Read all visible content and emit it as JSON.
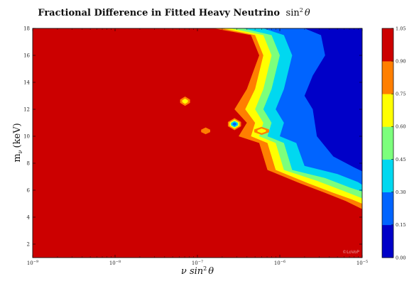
{
  "chart_data": {
    "type": "contour",
    "title": "Fractional Difference in Fitted Heavy Neutrino",
    "title_math": "sin",
    "title_math_sup": "2",
    "title_math_var": "θ",
    "xlabel_prefix": "ν sin",
    "xlabel_sup": "2",
    "xlabel_var": "θ",
    "ylabel": "m",
    "ylabel_sub": "ν",
    "ylabel_unit": "(keV)",
    "x_scale": "log",
    "xlim": [
      1e-09,
      1e-05
    ],
    "ylim": [
      1,
      18
    ],
    "x_ticks": [
      {
        "value": 1e-09,
        "label": "10",
        "exp": "−9"
      },
      {
        "value": 1e-08,
        "label": "10",
        "exp": "−8"
      },
      {
        "value": 1e-07,
        "label": "10",
        "exp": "−7"
      },
      {
        "value": 1e-06,
        "label": "10",
        "exp": "−6"
      },
      {
        "value": 1e-05,
        "label": "10",
        "exp": "−5"
      }
    ],
    "y_ticks": [
      "2",
      "4",
      "6",
      "8",
      "10",
      "12",
      "14",
      "16",
      "18"
    ],
    "y_tick_values": [
      2,
      4,
      6,
      8,
      10,
      12,
      14,
      16,
      18
    ],
    "levels": [
      0.0,
      0.15,
      0.3,
      0.45,
      0.6,
      0.75,
      0.9,
      1.05
    ],
    "colorbar_labels": [
      "0.00",
      "0.15",
      "0.30",
      "0.45",
      "0.60",
      "0.75",
      "0.90",
      "1.05"
    ],
    "level_colors": [
      "#0000c8",
      "#0064ff",
      "#00d8f0",
      "#7cff7c",
      "#ffff00",
      "#ff7f00",
      "#cc0000"
    ],
    "boundaries": [
      {
        "above": 0.9,
        "points": [
          [
            -6.8,
            18
          ],
          [
            -6.35,
            17.5
          ],
          [
            -6.25,
            16
          ],
          [
            -6.4,
            13.5
          ],
          [
            -6.55,
            12
          ],
          [
            -6.4,
            11
          ],
          [
            -6.5,
            10
          ],
          [
            -6.25,
            9.5
          ],
          [
            -6.15,
            7.5
          ],
          [
            -5.75,
            6.5
          ],
          [
            -5.45,
            5.8
          ],
          [
            -5.2,
            5.2
          ],
          [
            -5,
            4.6
          ],
          [
            -5,
            1
          ]
        ]
      },
      {
        "above": 0.75,
        "points": [
          [
            -6.7,
            18
          ],
          [
            -6.3,
            17.5
          ],
          [
            -6.2,
            16
          ],
          [
            -6.3,
            13.5
          ],
          [
            -6.42,
            12
          ],
          [
            -6.3,
            11
          ],
          [
            -6.35,
            10
          ],
          [
            -6.15,
            9.5
          ],
          [
            -6.05,
            7.5
          ],
          [
            -5.65,
            6.5
          ],
          [
            -5.35,
            5.8
          ],
          [
            -5.12,
            5.3
          ],
          [
            -5,
            5
          ],
          [
            -5,
            1
          ]
        ]
      },
      {
        "above": 0.6,
        "points": [
          [
            -6.6,
            18
          ],
          [
            -6.2,
            17.5
          ],
          [
            -6.1,
            16
          ],
          [
            -6.2,
            13.5
          ],
          [
            -6.3,
            12
          ],
          [
            -6.2,
            11
          ],
          [
            -6.25,
            10
          ],
          [
            -6.05,
            9.5
          ],
          [
            -5.95,
            7.5
          ],
          [
            -5.55,
            6.7
          ],
          [
            -5.25,
            6
          ],
          [
            -5,
            5.4
          ],
          [
            -5,
            1
          ]
        ]
      },
      {
        "above": 0.45,
        "points": [
          [
            -6.45,
            18
          ],
          [
            -6.1,
            17.5
          ],
          [
            -6,
            16
          ],
          [
            -6.1,
            13.5
          ],
          [
            -6.2,
            12
          ],
          [
            -6.1,
            11
          ],
          [
            -6.15,
            10
          ],
          [
            -5.95,
            9.5
          ],
          [
            -5.85,
            7.5
          ],
          [
            -5.45,
            6.9
          ],
          [
            -5.15,
            6.2
          ],
          [
            -5,
            5.9
          ],
          [
            -5,
            1
          ]
        ]
      },
      {
        "above": 0.3,
        "points": [
          [
            -6.2,
            18
          ],
          [
            -5.95,
            17.5
          ],
          [
            -5.85,
            16
          ],
          [
            -5.95,
            13.5
          ],
          [
            -6.05,
            12
          ],
          [
            -5.95,
            11
          ],
          [
            -6,
            10
          ],
          [
            -5.8,
            9.5
          ],
          [
            -5.7,
            7.8
          ],
          [
            -5.3,
            7.2
          ],
          [
            -5.05,
            6.6
          ],
          [
            -5,
            6.4
          ],
          [
            -5,
            1
          ]
        ]
      },
      {
        "above": 0.15,
        "points": [
          [
            -5.7,
            18
          ],
          [
            -5.5,
            17.5
          ],
          [
            -5.45,
            16
          ],
          [
            -5.6,
            14.5
          ],
          [
            -5.7,
            13
          ],
          [
            -5.6,
            12
          ],
          [
            -5.55,
            10
          ],
          [
            -5.35,
            8.5
          ],
          [
            -5.1,
            7.7
          ],
          [
            -5,
            7.4
          ],
          [
            -5,
            1
          ]
        ]
      }
    ],
    "islands": [
      {
        "x": -6.9,
        "y": 10.4,
        "rx": 0.055,
        "ry": 0.25,
        "colors": [
          "#ff7f00"
        ]
      },
      {
        "x": -7.15,
        "y": 12.6,
        "rx": 0.06,
        "ry": 0.35,
        "colors": [
          "#ff7f00",
          "#ffff00"
        ]
      },
      {
        "x": -6.55,
        "y": 10.9,
        "rx": 0.08,
        "ry": 0.45,
        "colors": [
          "#ff7f00",
          "#ffff00",
          "#00d8f0",
          "#0064ff"
        ]
      },
      {
        "x": -6.22,
        "y": 10.4,
        "rx": 0.09,
        "ry": 0.3,
        "colors": [
          "#ff7f00",
          "#ffff00"
        ]
      }
    ],
    "credit": "©LoVoP"
  }
}
